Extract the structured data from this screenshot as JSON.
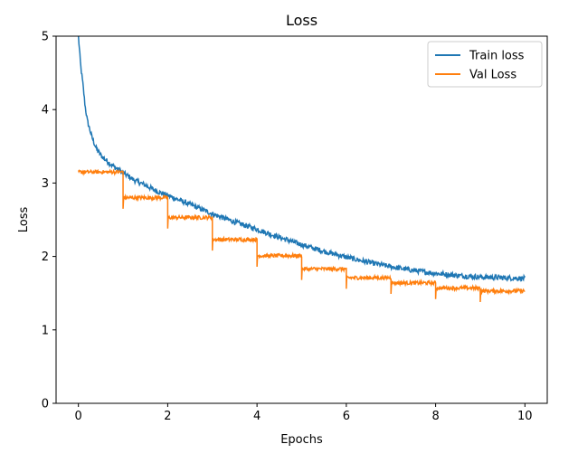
{
  "chart_data": {
    "type": "line",
    "title": "Loss",
    "xlabel": "Epochs",
    "ylabel": "Loss",
    "xlim": [
      -0.5,
      10.5
    ],
    "ylim": [
      0,
      5
    ],
    "xticks": [
      0,
      2,
      4,
      6,
      8,
      10
    ],
    "xtick_labels": [
      "0",
      "2",
      "4",
      "6",
      "8",
      "10"
    ],
    "yticks": [
      0,
      1,
      2,
      3,
      4,
      5
    ],
    "ytick_labels": [
      "0",
      "1",
      "2",
      "3",
      "4",
      "5"
    ],
    "grid": false,
    "legend_position": "top-right",
    "series": [
      {
        "name": "Train loss",
        "color": "#1f77b4",
        "x": [
          0.0,
          0.05,
          0.1,
          0.15,
          0.2,
          0.3,
          0.4,
          0.5,
          0.6,
          0.8,
          1.0,
          1.25,
          1.5,
          1.75,
          2.0,
          2.5,
          3.0,
          3.5,
          4.0,
          4.5,
          5.0,
          5.5,
          6.0,
          6.5,
          7.0,
          7.5,
          8.0,
          8.5,
          9.0,
          9.5,
          10.0
        ],
        "y": [
          5.0,
          4.6,
          4.35,
          4.05,
          3.85,
          3.63,
          3.47,
          3.38,
          3.32,
          3.22,
          3.14,
          3.04,
          2.97,
          2.89,
          2.83,
          2.71,
          2.58,
          2.47,
          2.37,
          2.26,
          2.16,
          2.07,
          1.99,
          1.92,
          1.86,
          1.81,
          1.77,
          1.74,
          1.72,
          1.71,
          1.7
        ],
        "noise": 0.035
      },
      {
        "name": "Val Loss",
        "color": "#ff7f0e",
        "segments": [
          {
            "x0": 0.0,
            "x1": 1.0,
            "level": 3.15
          },
          {
            "x0": 1.0,
            "x1": 2.0,
            "level": 2.8
          },
          {
            "x0": 2.0,
            "x1": 3.0,
            "level": 2.53
          },
          {
            "x0": 3.0,
            "x1": 4.0,
            "level": 2.23
          },
          {
            "x0": 4.0,
            "x1": 5.0,
            "level": 2.01
          },
          {
            "x0": 5.0,
            "x1": 6.0,
            "level": 1.83
          },
          {
            "x0": 6.0,
            "x1": 7.0,
            "level": 1.71
          },
          {
            "x0": 7.0,
            "x1": 8.0,
            "level": 1.64
          },
          {
            "x0": 8.0,
            "x1": 9.0,
            "level": 1.57
          },
          {
            "x0": 9.0,
            "x1": 10.0,
            "level": 1.53
          }
        ],
        "noise": 0.025
      }
    ]
  }
}
